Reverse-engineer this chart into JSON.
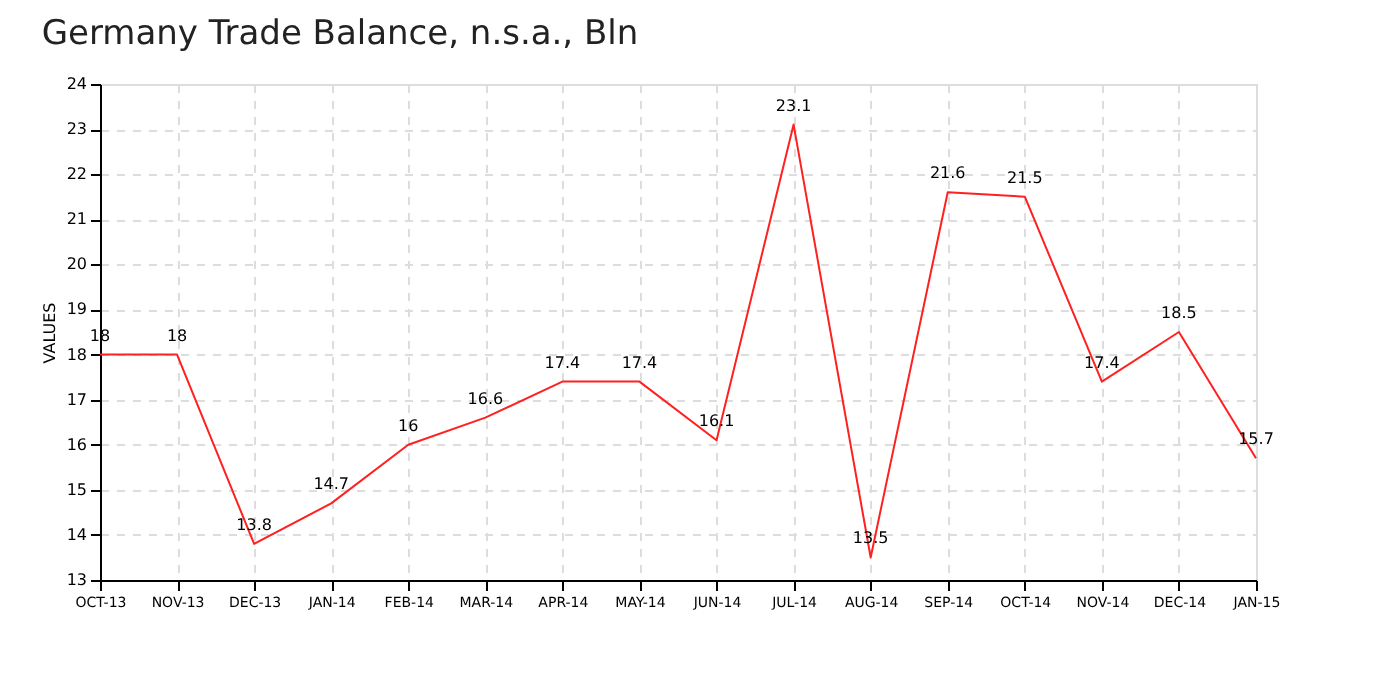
{
  "chart_data": {
    "type": "line",
    "title": "Germany Trade Balance, n.s.a., Bln",
    "ylabel": "VALUES",
    "categories": [
      "OCT-13",
      "NOV-13",
      "DEC-13",
      "JAN-14",
      "FEB-14",
      "MAR-14",
      "APR-14",
      "MAY-14",
      "JUN-14",
      "JUL-14",
      "AUG-14",
      "SEP-14",
      "OCT-14",
      "NOV-14",
      "DEC-14",
      "JAN-15"
    ],
    "series": [
      {
        "color": "#ff2020",
        "values": [
          18,
          18,
          13.8,
          14.7,
          16,
          16.6,
          17.4,
          17.4,
          16.1,
          23.1,
          13.5,
          21.6,
          21.5,
          17.4,
          18.5,
          15.7
        ]
      }
    ],
    "ylim": [
      13,
      24
    ],
    "yticks": [
      13,
      14,
      15,
      16,
      17,
      18,
      19,
      20,
      21,
      22,
      23,
      24
    ],
    "grid": true,
    "legend": false,
    "marker": "none",
    "line_style": "solid",
    "data_labels": true
  }
}
